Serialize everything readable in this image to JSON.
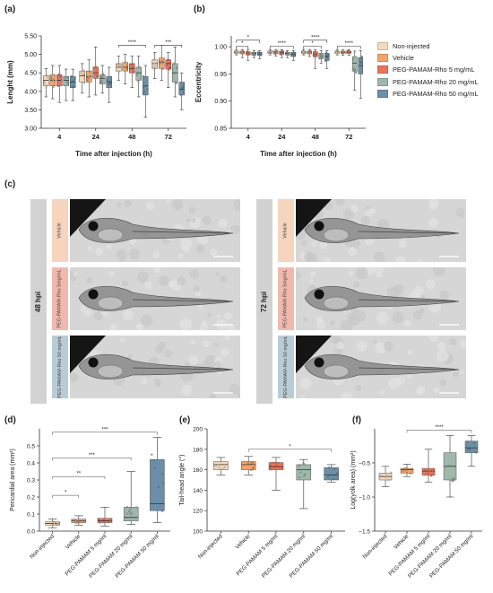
{
  "figure": {
    "panel_labels": [
      "(a)",
      "(b)",
      "(c)",
      "(d)",
      "(e)",
      "(f)"
    ],
    "legend": [
      {
        "label": "Non-injected",
        "color": "#f3d9bd"
      },
      {
        "label": "Vehicle",
        "color": "#f2a46b"
      },
      {
        "label": "PEG-PAMAM-Rho 5 mg/mL",
        "color": "#e8755a"
      },
      {
        "label": "PEG-PAMAM-Rho 20 mg/mL",
        "color": "#9fb7ad"
      },
      {
        "label": "PEG-PAMAM-Rho 50 mg/mL",
        "color": "#6b8fa8"
      }
    ]
  },
  "panel_c": {
    "left_hpi": "48 hpi",
    "right_hpi": "72 hpi",
    "row_labels": [
      "Vehicle",
      "PEG-PAMAM-Rho\n5mg/mL",
      "PEG-PAMAM-Rho\n50 mg/mL"
    ],
    "row_colors": [
      "#f6d4bd",
      "#f1b9ad",
      "#b9ccd6"
    ]
  },
  "chart_data": [
    {
      "id": "a",
      "type": "box",
      "title": "",
      "xlabel": "Time after injection (h)",
      "ylabel": "Lenght (mm)",
      "categories": [
        "4",
        "24",
        "48",
        "72"
      ],
      "ylim": [
        3.0,
        5.5
      ],
      "yticks": [
        3.0,
        3.5,
        4.0,
        4.5,
        5.0,
        5.5
      ],
      "ytick_labels": [
        "3.00",
        "3.50",
        "4.00",
        "4.50",
        "5.00",
        "5.50"
      ],
      "series": [
        {
          "name": "Non-injected",
          "color": "#f3d9bd",
          "boxes": [
            [
              3.85,
              4.15,
              4.3,
              4.42,
              4.62
            ],
            [
              3.95,
              4.25,
              4.42,
              4.55,
              4.75
            ],
            [
              4.3,
              4.55,
              4.65,
              4.75,
              4.95
            ],
            [
              4.35,
              4.62,
              4.75,
              4.85,
              5.05
            ]
          ]
        },
        {
          "name": "Vehicle",
          "color": "#f2a46b",
          "boxes": [
            [
              3.8,
              4.15,
              4.3,
              4.45,
              4.7
            ],
            [
              3.85,
              4.25,
              4.4,
              4.55,
              4.85
            ],
            [
              4.2,
              4.55,
              4.65,
              4.78,
              5.0
            ],
            [
              4.3,
              4.62,
              4.78,
              4.9,
              5.25
            ]
          ]
        },
        {
          "name": "PEG-PAMAM-Rho 5 mg/mL",
          "color": "#e8755a",
          "boxes": [
            [
              3.7,
              4.15,
              4.3,
              4.45,
              4.7
            ],
            [
              3.9,
              4.35,
              4.5,
              4.65,
              5.2
            ],
            [
              4.1,
              4.5,
              4.62,
              4.75,
              4.95
            ],
            [
              4.1,
              4.6,
              4.75,
              4.85,
              5.05
            ]
          ]
        },
        {
          "name": "PEG-PAMAM-Rho 20 mg/mL",
          "color": "#9fb7ad",
          "boxes": [
            [
              3.75,
              4.15,
              4.3,
              4.4,
              4.6
            ],
            [
              3.95,
              4.2,
              4.35,
              4.45,
              4.7
            ],
            [
              3.85,
              4.3,
              4.5,
              4.65,
              4.95
            ],
            [
              3.85,
              4.25,
              4.5,
              4.75,
              5.2
            ]
          ]
        },
        {
          "name": "PEG-PAMAM-Rho 50 mg/mL",
          "color": "#6b8fa8",
          "boxes": [
            [
              3.75,
              4.1,
              4.25,
              4.4,
              4.6
            ],
            [
              3.7,
              4.1,
              4.25,
              4.4,
              4.65
            ],
            [
              3.3,
              3.9,
              4.15,
              4.4,
              4.7
            ],
            [
              3.5,
              3.9,
              4.05,
              4.25,
              4.5
            ]
          ]
        }
      ],
      "significance": [
        {
          "group": 2,
          "from": 0,
          "to": 4,
          "y": 5.25,
          "label": "****"
        },
        {
          "group": 3,
          "from": 0,
          "to": 4,
          "y": 5.25,
          "label": "***"
        }
      ]
    },
    {
      "id": "b",
      "type": "box",
      "title": "",
      "xlabel": "Time after injection (h)",
      "ylabel": "Eccentricity",
      "categories": [
        "4",
        "24",
        "48",
        "72"
      ],
      "ylim": [
        0.85,
        1.02
      ],
      "yticks": [
        0.85,
        0.9,
        0.95,
        1.0
      ],
      "ytick_labels": [
        "0.85",
        "0.90",
        "0.95",
        "1.00"
      ],
      "series": [
        {
          "name": "Non-injected",
          "color": "#f3d9bd",
          "boxes": [
            [
              0.985,
              0.988,
              0.99,
              0.992,
              0.995
            ],
            [
              0.985,
              0.988,
              0.99,
              0.992,
              0.995
            ],
            [
              0.985,
              0.988,
              0.99,
              0.992,
              0.995
            ],
            [
              0.985,
              0.988,
              0.99,
              0.992,
              0.995
            ]
          ]
        },
        {
          "name": "Vehicle",
          "color": "#f2a46b",
          "boxes": [
            [
              0.98,
              0.987,
              0.99,
              0.992,
              0.995
            ],
            [
              0.983,
              0.987,
              0.99,
              0.992,
              0.995
            ],
            [
              0.982,
              0.987,
              0.99,
              0.992,
              0.995
            ],
            [
              0.984,
              0.988,
              0.99,
              0.992,
              0.995
            ]
          ]
        },
        {
          "name": "PEG-PAMAM-Rho 5 mg/mL",
          "color": "#e8755a",
          "boxes": [
            [
              0.975,
              0.985,
              0.988,
              0.991,
              0.995
            ],
            [
              0.98,
              0.986,
              0.989,
              0.992,
              0.995
            ],
            [
              0.96,
              0.982,
              0.987,
              0.991,
              0.995
            ],
            [
              0.984,
              0.988,
              0.99,
              0.992,
              0.995
            ]
          ]
        },
        {
          "name": "PEG-PAMAM-Rho 20 mg/mL",
          "color": "#9fb7ad",
          "boxes": [
            [
              0.98,
              0.985,
              0.988,
              0.99,
              0.993
            ],
            [
              0.98,
              0.985,
              0.988,
              0.99,
              0.993
            ],
            [
              0.97,
              0.978,
              0.983,
              0.988,
              0.993
            ],
            [
              0.92,
              0.955,
              0.97,
              0.982,
              0.992
            ]
          ]
        },
        {
          "name": "PEG-PAMAM-Rho 50 mg/mL",
          "color": "#6b8fa8",
          "boxes": [
            [
              0.978,
              0.984,
              0.987,
              0.99,
              0.993
            ],
            [
              0.975,
              0.982,
              0.986,
              0.99,
              0.993
            ],
            [
              0.96,
              0.975,
              0.982,
              0.988,
              0.993
            ],
            [
              0.905,
              0.95,
              0.965,
              0.98,
              0.993
            ]
          ]
        }
      ],
      "significance": [
        {
          "group": 0,
          "from": 0,
          "to": 4,
          "y": 1.012,
          "label": "*"
        },
        {
          "group": 0,
          "from": 0,
          "to": 2,
          "y": 1.001,
          "label": "*"
        },
        {
          "group": 1,
          "from": 0,
          "to": 4,
          "y": 1.001,
          "label": "****"
        },
        {
          "group": 2,
          "from": 0,
          "to": 4,
          "y": 1.012,
          "label": "****"
        },
        {
          "group": 2,
          "from": 0,
          "to": 3,
          "y": 1.001,
          "label": "*"
        },
        {
          "group": 3,
          "from": 0,
          "to": 4,
          "y": 1.001,
          "label": "****"
        }
      ]
    },
    {
      "id": "d",
      "type": "box",
      "title": "",
      "xlabel": "",
      "ylabel": "Pericardial area (mm²)",
      "categories": [
        "Non-injected",
        "Vehicle",
        "PEG-PAMAM 5 mg/ml",
        "PEG-PAMAM 20 mg/ml",
        "PEG-PAMAM 50 mg/ml"
      ],
      "colors": [
        "#f3d9bd",
        "#f2a46b",
        "#e8755a",
        "#9fb7ad",
        "#6b8fa8"
      ],
      "ylim": [
        0.0,
        0.6
      ],
      "yticks": [
        0.0,
        0.1,
        0.2,
        0.3,
        0.4,
        0.5
      ],
      "ytick_labels": [
        "0.0",
        "0.1",
        "0.2",
        "0.3",
        "0.4",
        "0.5"
      ],
      "boxes": [
        [
          0.02,
          0.035,
          0.045,
          0.055,
          0.07
        ],
        [
          0.035,
          0.05,
          0.06,
          0.07,
          0.09
        ],
        [
          0.03,
          0.05,
          0.06,
          0.075,
          0.14
        ],
        [
          0.04,
          0.06,
          0.08,
          0.14,
          0.35
        ],
        [
          0.05,
          0.12,
          0.16,
          0.42,
          0.55
        ]
      ],
      "significance": [
        {
          "from": 0,
          "to": 1,
          "y": 0.21,
          "label": "*"
        },
        {
          "from": 0,
          "to": 2,
          "y": 0.32,
          "label": "**"
        },
        {
          "from": 0,
          "to": 3,
          "y": 0.43,
          "label": "***"
        },
        {
          "from": 0,
          "to": 4,
          "y": 0.58,
          "label": "***"
        }
      ]
    },
    {
      "id": "e",
      "type": "box",
      "title": "",
      "xlabel": "",
      "ylabel": "Tail-head angle (°)",
      "categories": [
        "Non-injected",
        "Vehicle",
        "PEG-PAMAM 5 mg/ml",
        "PEG-PAMAM 20 mg/ml",
        "PEG-PAMAM 50 mg/ml"
      ],
      "colors": [
        "#f3d9bd",
        "#f2a46b",
        "#e8755a",
        "#9fb7ad",
        "#6b8fa8"
      ],
      "ylim": [
        100,
        200
      ],
      "yticks": [
        100,
        120,
        140,
        160,
        180,
        200
      ],
      "ytick_labels": [
        "100",
        "120",
        "140",
        "160",
        "180",
        "200"
      ],
      "boxes": [
        [
          155,
          160,
          165,
          168,
          172
        ],
        [
          155,
          160,
          165,
          168,
          173
        ],
        [
          140,
          160,
          163,
          167,
          172
        ],
        [
          122,
          150,
          160,
          165,
          170
        ],
        [
          148,
          150,
          155,
          162,
          165
        ]
      ],
      "significance": [
        {
          "from": 1,
          "to": 4,
          "y": 180,
          "label": "*"
        }
      ]
    },
    {
      "id": "f",
      "type": "box",
      "title": "",
      "xlabel": "",
      "ylabel": "Log(yolk area) (mm²)",
      "categories": [
        "Non-injected",
        "Vehicle",
        "PEG-PAMAM 5 mg/ml",
        "PEG-PAMAM 20 mg/ml",
        "PEG-PAMAM 50 mg/ml"
      ],
      "colors": [
        "#f3d9bd",
        "#f2a46b",
        "#e8755a",
        "#9fb7ad",
        "#6b8fa8"
      ],
      "ylim": [
        -1.5,
        0.0
      ],
      "yticks": [
        -1.5,
        -1.0,
        -0.5
      ],
      "ytick_labels": [
        "−1.5",
        "−1.0",
        "−0.5"
      ],
      "boxes": [
        [
          -0.85,
          -0.75,
          -0.7,
          -0.65,
          -0.55
        ],
        [
          -0.7,
          -0.65,
          -0.6,
          -0.58,
          -0.52
        ],
        [
          -0.78,
          -0.68,
          -0.62,
          -0.58,
          -0.3
        ],
        [
          -1.0,
          -0.75,
          -0.55,
          -0.35,
          -0.1
        ],
        [
          -0.55,
          -0.35,
          -0.28,
          -0.18,
          -0.1
        ]
      ],
      "significance": [
        {
          "from": 1,
          "to": 4,
          "y": -0.02,
          "label": "****"
        }
      ]
    }
  ]
}
